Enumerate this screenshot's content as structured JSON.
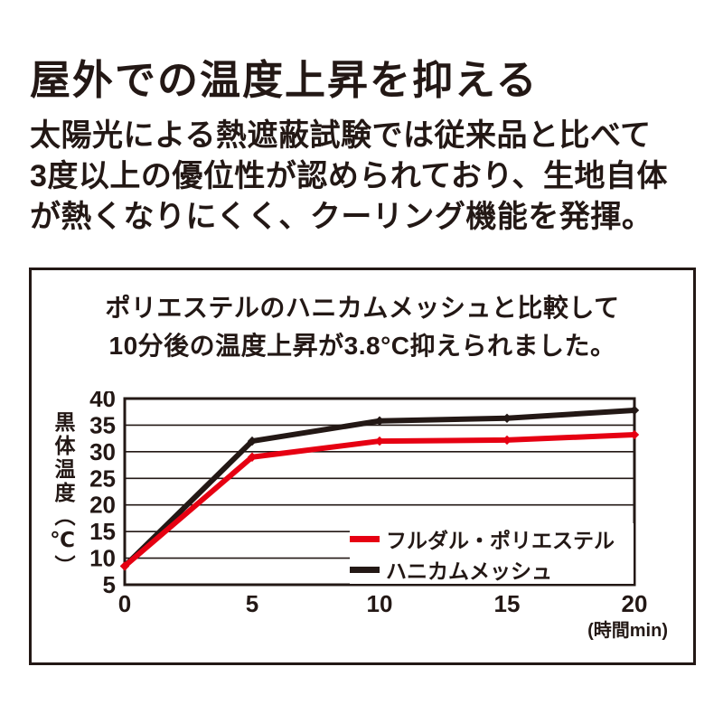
{
  "page": {
    "title": "屋外での温度上昇を抑える",
    "intro_lines": [
      "太陽光による熱遮蔽試験では従来品と比べて",
      "3度以上の優位性が認められており、生地自体",
      "が熱くなりにくく、クーリング機能を発揮。"
    ]
  },
  "panel": {
    "heading_lines": [
      "ポリエステルのハニカムメッシュと比較して",
      "10分後の温度上昇が3.8°C抑えられました。"
    ]
  },
  "chart_data": {
    "type": "line",
    "x": [
      0,
      5,
      10,
      15,
      20
    ],
    "series": [
      {
        "name": "フルダル・ポリエステル",
        "color": "#e60012",
        "values": [
          8.5,
          29,
          32,
          32.2,
          33.2
        ]
      },
      {
        "name": "ハニカムメッシュ",
        "color": "#231815",
        "values": [
          8.5,
          32,
          35.8,
          36.3,
          37.8
        ]
      }
    ],
    "ylabel": "黒体温度（℃）",
    "xunit": "(時間min)",
    "y_ticks": [
      40,
      35,
      30,
      25,
      20,
      15,
      10,
      5
    ],
    "x_ticks": [
      0,
      5,
      10,
      15,
      20
    ],
    "ylim": [
      5,
      40
    ],
    "xlim": [
      0,
      20
    ],
    "grid": "horizontal",
    "legend_position": "inside-bottom-right",
    "annotation": "10分後の温度上昇差 3.8°C"
  },
  "colors": {
    "text": "#231815",
    "accent_red": "#e60012",
    "background": "#ffffff"
  }
}
